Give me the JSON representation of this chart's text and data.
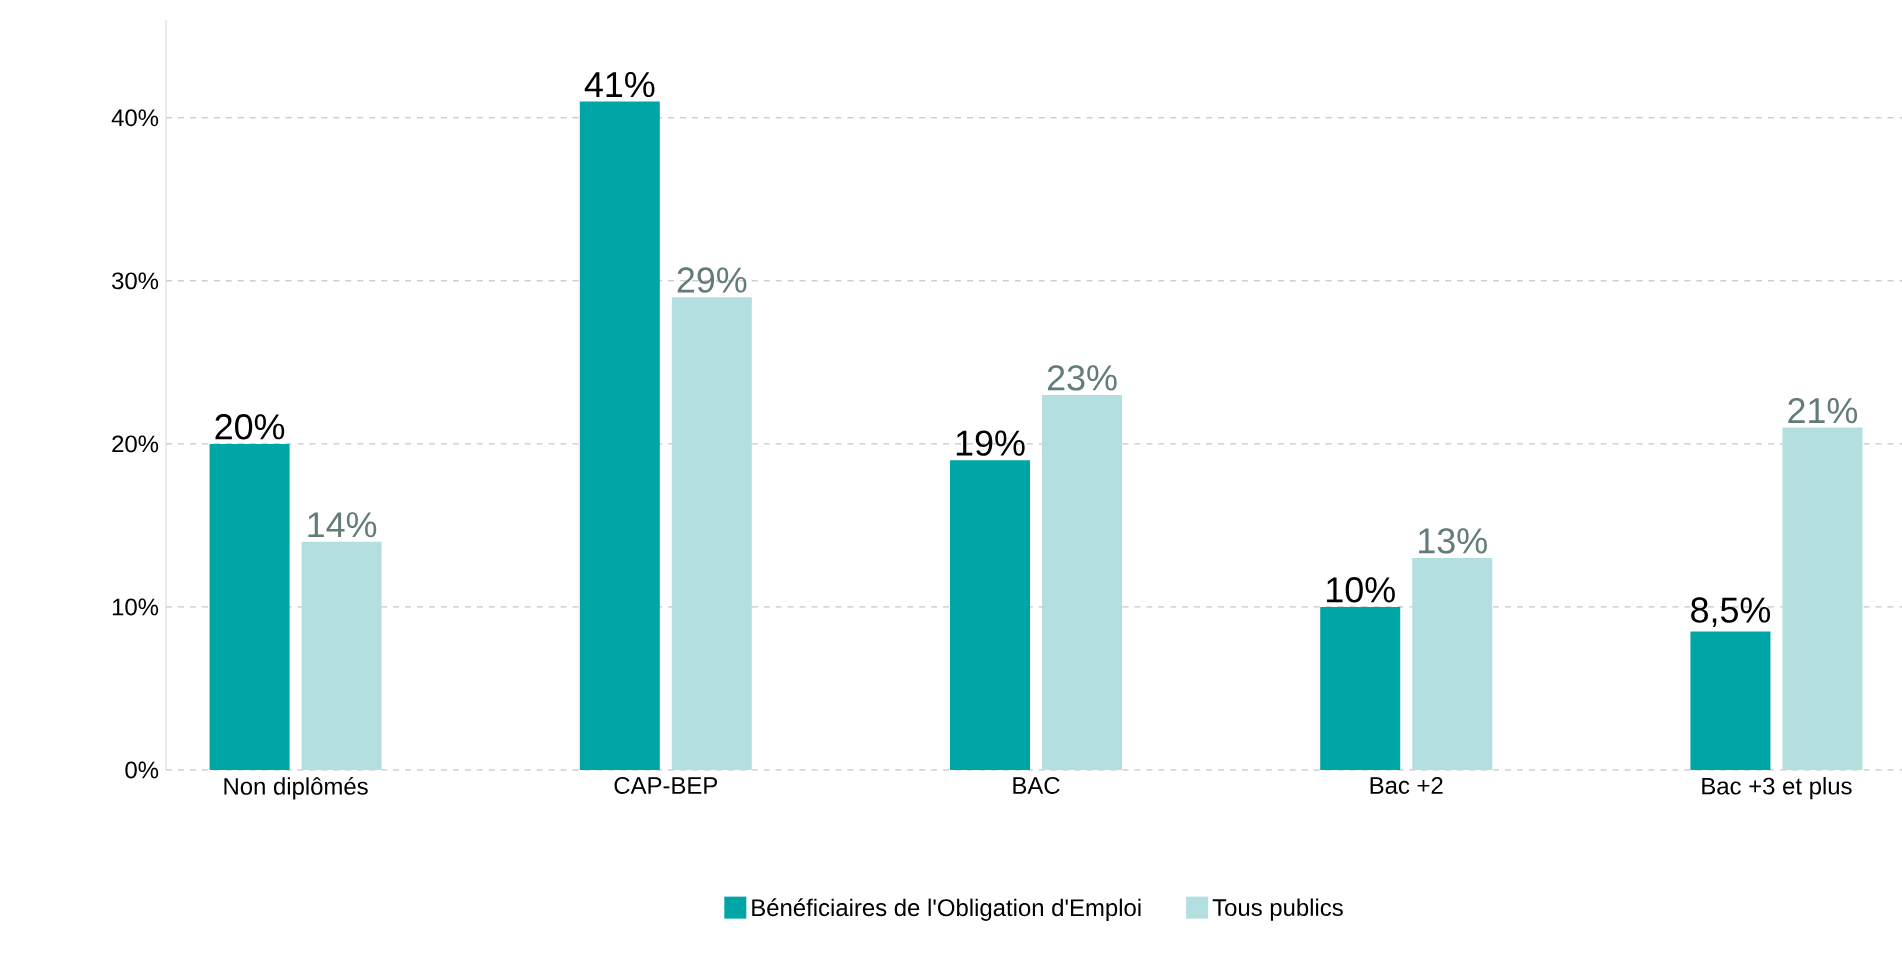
{
  "chart_data": {
    "type": "bar",
    "categories": [
      "Non diplômés",
      "CAP-BEP",
      "BAC",
      "Bac +2",
      "Bac +3 et plus"
    ],
    "series": [
      {
        "name": "Bénéficiaires de l'Obligation d'Emploi",
        "color": "#00a5a5",
        "values": [
          20,
          41,
          19,
          10,
          8.5
        ],
        "value_labels": [
          "20%",
          "41%",
          "19%",
          "10%",
          "8,5%"
        ]
      },
      {
        "name": "Tous publics",
        "color": "#b3dfe0",
        "values": [
          14,
          29,
          23,
          13,
          21
        ],
        "value_labels": [
          "14%",
          "29%",
          "23%",
          "13%",
          "21%"
        ]
      }
    ],
    "ylim": [
      0,
      46
    ],
    "yticks": [
      {
        "value": 0,
        "label": "0%"
      },
      {
        "value": 10,
        "label": "10%"
      },
      {
        "value": 20,
        "label": "20%"
      },
      {
        "value": 30,
        "label": "30%"
      },
      {
        "value": 40,
        "label": "40%"
      }
    ],
    "grid": "y",
    "legend": "bottom"
  }
}
